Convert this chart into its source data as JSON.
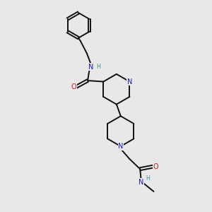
{
  "bg": "#e8e8e8",
  "bc": "#111111",
  "NC": "#1818cc",
  "OC": "#cc1818",
  "HC": "#3a9898",
  "lw": 1.4,
  "fs": 7.0,
  "fsh": 5.8,
  "xlim": [
    0,
    10
  ],
  "ylim": [
    0,
    10
  ]
}
